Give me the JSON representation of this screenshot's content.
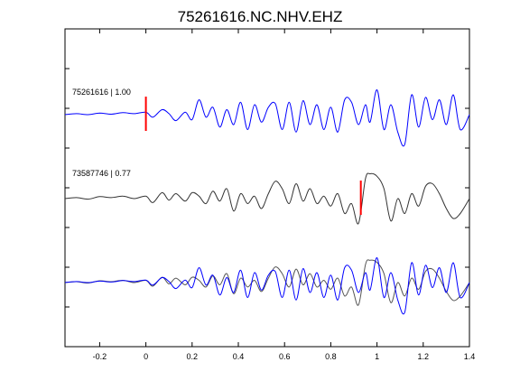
{
  "chart_data": {
    "type": "line",
    "title": "75261616.NC.NHV.EHZ",
    "xlabel": "",
    "ylabel": "",
    "xlim": [
      -0.35,
      1.4
    ],
    "xticks": [
      -0.2,
      0,
      0.2,
      0.4,
      0.6,
      0.8,
      1,
      1.2,
      1.4
    ],
    "xtick_labels": [
      "-0.2",
      "0",
      "0.2",
      "0.4",
      "0.6",
      "0.8",
      "1",
      "1.2",
      "1.4"
    ],
    "grid": false,
    "traces": [
      {
        "label": "75261616 | 1.00",
        "color": "#0000ff",
        "pick_time": 0.0,
        "x": [
          -0.35,
          -0.3,
          -0.25,
          -0.2,
          -0.15,
          -0.1,
          -0.05,
          0,
          0.03,
          0.07,
          0.1,
          0.13,
          0.17,
          0.2,
          0.23,
          0.26,
          0.29,
          0.32,
          0.35,
          0.38,
          0.41,
          0.44,
          0.47,
          0.5,
          0.53,
          0.56,
          0.59,
          0.62,
          0.65,
          0.68,
          0.71,
          0.74,
          0.77,
          0.8,
          0.83,
          0.86,
          0.89,
          0.92,
          0.95,
          0.97,
          1,
          1.03,
          1.06,
          1.09,
          1.12,
          1.15,
          1.18,
          1.21,
          1.24,
          1.27,
          1.3,
          1.33,
          1.36,
          1.4
        ],
        "y": [
          0,
          0.02,
          0,
          0.03,
          0.01,
          0.04,
          0.02,
          0.05,
          -0.05,
          0.1,
          0.02,
          -0.12,
          0.05,
          -0.1,
          0.3,
          -0.05,
          0.15,
          -0.25,
          0.1,
          -0.2,
          0.25,
          -0.3,
          0.2,
          -0.15,
          0.15,
          0.22,
          -0.3,
          0.25,
          -0.35,
          0.28,
          -0.2,
          0.2,
          -0.3,
          0.15,
          -0.35,
          0.3,
          0.25,
          -0.2,
          0.2,
          -0.15,
          0.5,
          -0.3,
          0.2,
          -0.35,
          -0.6,
          0.4,
          -0.25,
          0.35,
          -0.1,
          0.3,
          -0.2,
          0.4,
          -0.3,
          0
        ]
      },
      {
        "label": "73587746 | 0.77",
        "color": "#333333",
        "pick_time": 0.93,
        "x": [
          -0.35,
          -0.3,
          -0.25,
          -0.2,
          -0.15,
          -0.1,
          -0.05,
          0,
          0.03,
          0.07,
          0.1,
          0.13,
          0.17,
          0.2,
          0.23,
          0.26,
          0.29,
          0.32,
          0.35,
          0.38,
          0.41,
          0.44,
          0.47,
          0.5,
          0.53,
          0.56,
          0.59,
          0.62,
          0.65,
          0.68,
          0.71,
          0.74,
          0.77,
          0.8,
          0.83,
          0.86,
          0.89,
          0.92,
          0.95,
          0.97,
          1,
          1.03,
          1.06,
          1.09,
          1.12,
          1.15,
          1.18,
          1.21,
          1.24,
          1.27,
          1.3,
          1.33,
          1.36,
          1.4
        ],
        "y": [
          0,
          0.02,
          -0.01,
          0.04,
          0.02,
          0.05,
          0.0,
          0.05,
          -0.08,
          0.12,
          -0.03,
          0.1,
          -0.05,
          0.12,
          0.05,
          -0.1,
          0.15,
          -0.05,
          0.2,
          -0.25,
          0.1,
          -0.1,
          0.05,
          -0.2,
          0.1,
          0.35,
          0.2,
          -0.1,
          0.3,
          -0.05,
          0.2,
          -0.1,
          0.05,
          -0.15,
          0.1,
          -0.3,
          -0.1,
          -0.5,
          0.4,
          0.5,
          0.45,
          0.2,
          -0.45,
          0.0,
          -0.3,
          0.1,
          -0.15,
          0.25,
          0.3,
          0.1,
          -0.2,
          -0.4,
          -0.3,
          0
        ]
      },
      {
        "label": "",
        "color": "#0000ff",
        "overlay_color": "#555555",
        "pick_time": null,
        "note_overlay": true
      }
    ]
  }
}
